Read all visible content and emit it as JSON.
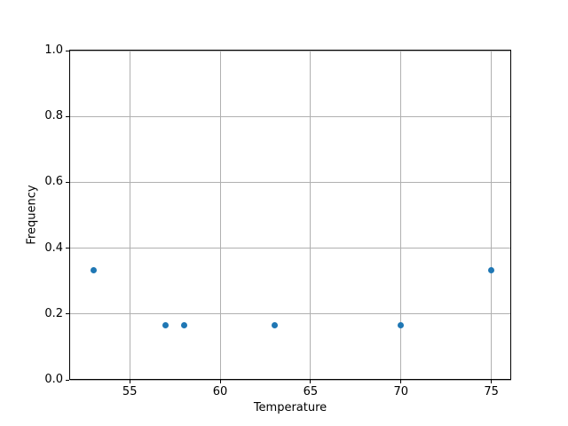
{
  "figure": {
    "background": "#ffffff"
  },
  "chart_data": {
    "type": "scatter",
    "title": "",
    "xlabel": "Temperature",
    "ylabel": "Frequency",
    "x": [
      53,
      57,
      58,
      63,
      70,
      75
    ],
    "y": [
      0.333,
      0.167,
      0.167,
      0.167,
      0.167,
      0.333
    ],
    "xlim": [
      51.7,
      76.1
    ],
    "ylim": [
      0.0,
      1.0
    ],
    "x_ticks": [
      55,
      60,
      65,
      70,
      75
    ],
    "x_tick_labels": [
      "55",
      "60",
      "65",
      "70",
      "75"
    ],
    "y_ticks": [
      0.0,
      0.2,
      0.4,
      0.6,
      0.8,
      1.0
    ],
    "y_tick_labels": [
      "0.0",
      "0.2",
      "0.4",
      "0.6",
      "0.8",
      "1.0"
    ],
    "grid": true,
    "marker_color": "#1f77b4",
    "marker_diameter_px": 7,
    "grid_color": "#b0b0b0",
    "spine_color": "#000000",
    "text_color": "#000000"
  }
}
